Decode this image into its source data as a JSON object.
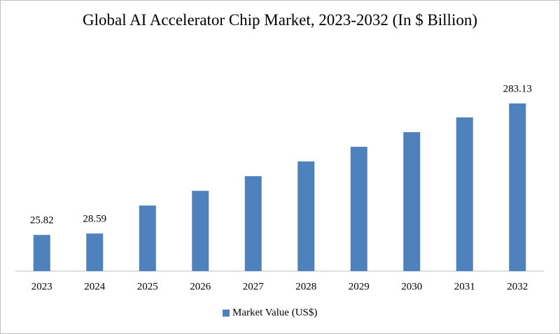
{
  "chart_data": {
    "type": "bar",
    "title": "Global AI Accelerator Chip Market, 2023-2032 (In $ Billion)",
    "categories": [
      "2023",
      "2024",
      "2025",
      "2026",
      "2027",
      "2028",
      "2029",
      "2030",
      "2031",
      "2032"
    ],
    "series": [
      {
        "name": "Market Value (US$)",
        "color": "#4f81bd",
        "values": [
          25.82,
          28.59,
          83.3,
          112.1,
          140.8,
          169.6,
          198.3,
          227.0,
          255.8,
          283.13
        ],
        "value_labels": [
          "25.82",
          "28.59",
          null,
          null,
          null,
          null,
          null,
          null,
          null,
          "283.13"
        ]
      }
    ],
    "ylim": [
      -45,
      300
    ],
    "legend": "bottom"
  }
}
